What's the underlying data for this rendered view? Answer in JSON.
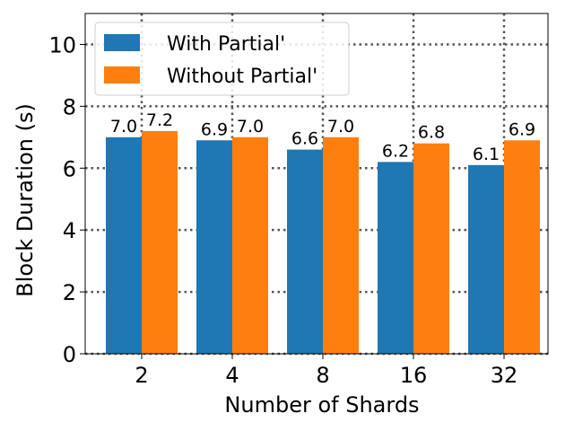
{
  "chart_data": {
    "type": "bar",
    "title": "",
    "xlabel": "Number of Shards",
    "ylabel": "Block Duration (s)",
    "categories": [
      "2",
      "4",
      "8",
      "16",
      "32"
    ],
    "series": [
      {
        "name": "With Partial'",
        "color": "#1f77b4",
        "values": [
          7.0,
          6.9,
          6.6,
          6.2,
          6.1
        ],
        "labels": [
          "7.0",
          "6.9",
          "6.6",
          "6.2",
          "6.1"
        ]
      },
      {
        "name": "Without Partial'",
        "color": "#ff7f0e",
        "values": [
          7.2,
          7.0,
          7.0,
          6.8,
          6.9
        ],
        "labels": [
          "7.2",
          "7.0",
          "7.0",
          "6.8",
          "6.9"
        ]
      }
    ],
    "ylim": [
      0,
      11
    ],
    "yticks": [
      "0",
      "2",
      "4",
      "6",
      "8",
      "10"
    ],
    "grid": true,
    "legend_position": "top-left"
  }
}
